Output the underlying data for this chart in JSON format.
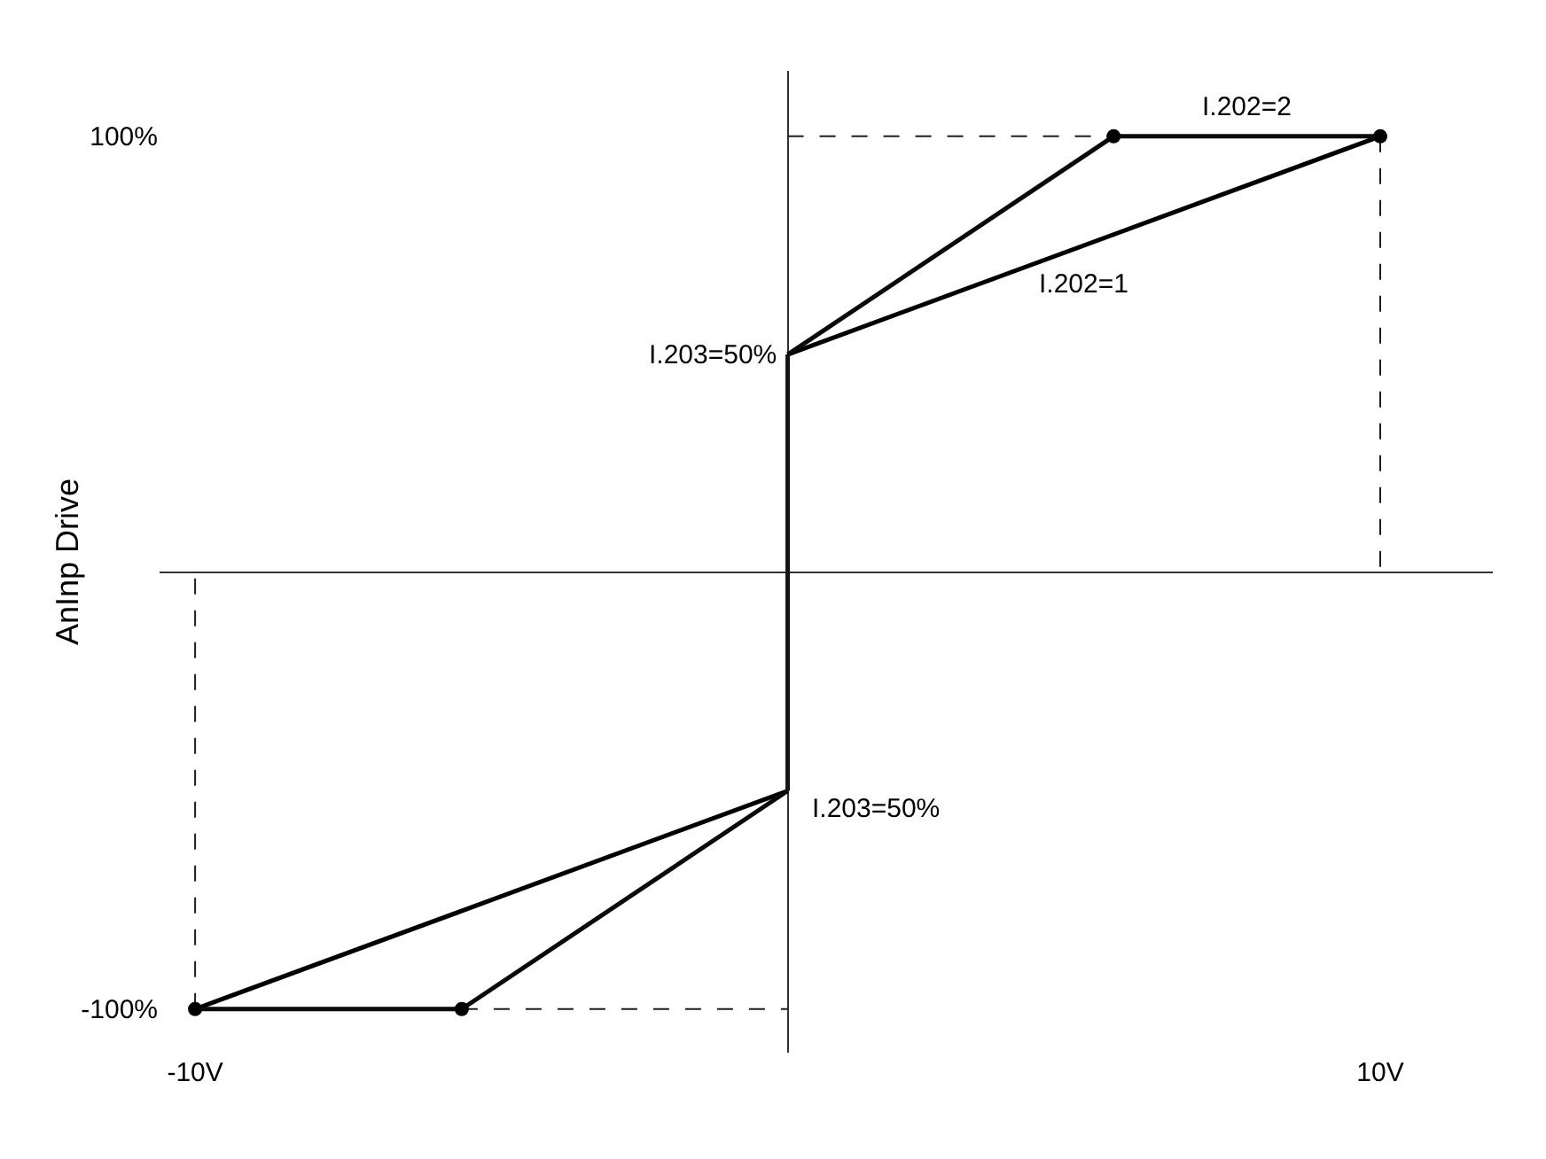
{
  "chart_data": {
    "type": "line",
    "ylabel": "AnInp Drive",
    "xlim": [
      -10.6,
      11.9
    ],
    "ylim": [
      -110,
      115
    ],
    "xticks": [
      {
        "value": -10,
        "label": "-10V"
      },
      {
        "value": 10,
        "label": "10V"
      }
    ],
    "yticks": [
      {
        "value": -100,
        "label": "-100%"
      },
      {
        "value": 100,
        "label": "100%"
      }
    ],
    "grid": false,
    "legend": false,
    "marker": "none",
    "line_style": "solid",
    "series": [
      {
        "name": "I.202=1",
        "color": "#000000",
        "x": [
          -10,
          0,
          null,
          0,
          10
        ],
        "values": [
          -100,
          -50,
          null,
          50,
          100
        ]
      },
      {
        "name": "I.202=2",
        "color": "#0a0a0a",
        "x": [
          -10,
          -5.5,
          0,
          null,
          0,
          5.5,
          10
        ],
        "values": [
          -100,
          -100,
          -50,
          null,
          50,
          100,
          100
        ]
      },
      {
        "color": "#141414",
        "x": [
          0,
          0
        ],
        "values": [
          -50,
          50
        ]
      },
      {
        "color": "#1e1e1e",
        "line_style": "dashed",
        "x": [
          0,
          5.5,
          null,
          10,
          10,
          null,
          -10,
          -10,
          null,
          -5.5,
          0
        ],
        "values": [
          100,
          100,
          null,
          100,
          0,
          null,
          -100,
          0,
          null,
          -100,
          -100
        ]
      },
      {
        "type": "scatter",
        "marker": "circle",
        "color": "#000000",
        "x": [
          -10,
          -5.5,
          5.5,
          10
        ],
        "values": [
          -100,
          -100,
          100,
          100
        ]
      }
    ],
    "annotations": [
      {
        "text": "I.203=50%",
        "x": 0,
        "y": 50
      },
      {
        "text": "I.203=50%",
        "x": 0,
        "y": -50
      }
    ]
  }
}
